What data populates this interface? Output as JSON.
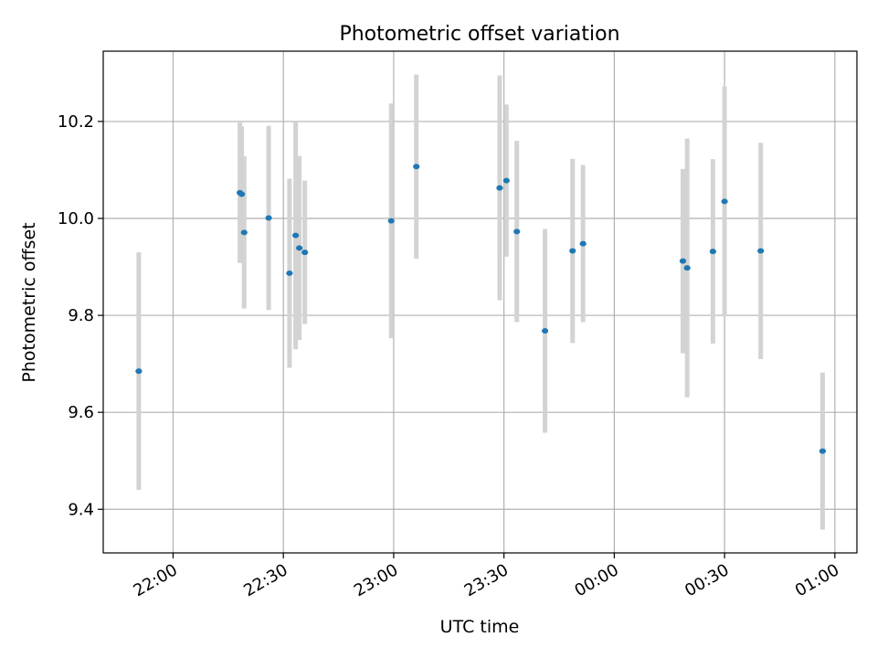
{
  "chart_data": {
    "type": "scatter",
    "title": "Photometric offset variation",
    "xlabel": "UTC time",
    "ylabel": "Photometric offset",
    "x_axis": {
      "range": [
        "21:41",
        "01:06"
      ],
      "ticks": [
        "22:00",
        "22:30",
        "23:00",
        "23:30",
        "00:00",
        "00:30",
        "01:00"
      ]
    },
    "y_axis": {
      "range": [
        9.31,
        10.345
      ],
      "ticks": [
        "9.4",
        "9.6",
        "9.8",
        "10.0",
        "10.2"
      ]
    },
    "grid": true,
    "legend": "none",
    "colors": {
      "points": "#1f77b4",
      "errorbars": "#d3d3d3",
      "grid": "#b0b0b0"
    },
    "points": [
      {
        "t": "21:50:40",
        "y": 9.685,
        "yerr": 0.245
      },
      {
        "t": "22:18:10",
        "y": 10.053,
        "yerr": 0.145
      },
      {
        "t": "22:18:40",
        "y": 10.05,
        "yerr": 0.14
      },
      {
        "t": "22:19:20",
        "y": 9.971,
        "yerr": 0.157
      },
      {
        "t": "22:26:00",
        "y": 10.001,
        "yerr": 0.19
      },
      {
        "t": "22:31:40",
        "y": 9.887,
        "yerr": 0.195
      },
      {
        "t": "22:33:20",
        "y": 9.965,
        "yerr": 0.235
      },
      {
        "t": "22:34:20",
        "y": 9.939,
        "yerr": 0.19
      },
      {
        "t": "22:35:50",
        "y": 9.93,
        "yerr": 0.148
      },
      {
        "t": "22:59:20",
        "y": 9.995,
        "yerr": 0.242
      },
      {
        "t": "23:06:10",
        "y": 10.107,
        "yerr": 0.19
      },
      {
        "t": "23:28:50",
        "y": 10.063,
        "yerr": 0.232
      },
      {
        "t": "23:30:40",
        "y": 10.078,
        "yerr": 0.157
      },
      {
        "t": "23:33:30",
        "y": 9.973,
        "yerr": 0.187
      },
      {
        "t": "23:41:10",
        "y": 9.768,
        "yerr": 0.21
      },
      {
        "t": "23:48:40",
        "y": 9.933,
        "yerr": 0.19
      },
      {
        "t": "23:51:30",
        "y": 9.948,
        "yerr": 0.162
      },
      {
        "t": "00:18:40",
        "y": 9.912,
        "yerr": 0.19
      },
      {
        "t": "00:19:50",
        "y": 9.898,
        "yerr": 0.267
      },
      {
        "t": "00:26:50",
        "y": 9.932,
        "yerr": 0.19
      },
      {
        "t": "00:30:00",
        "y": 10.035,
        "yerr": 0.237
      },
      {
        "t": "00:39:50",
        "y": 9.933,
        "yerr": 0.223
      },
      {
        "t": "00:56:40",
        "y": 9.52,
        "yerr": 0.162
      }
    ]
  }
}
